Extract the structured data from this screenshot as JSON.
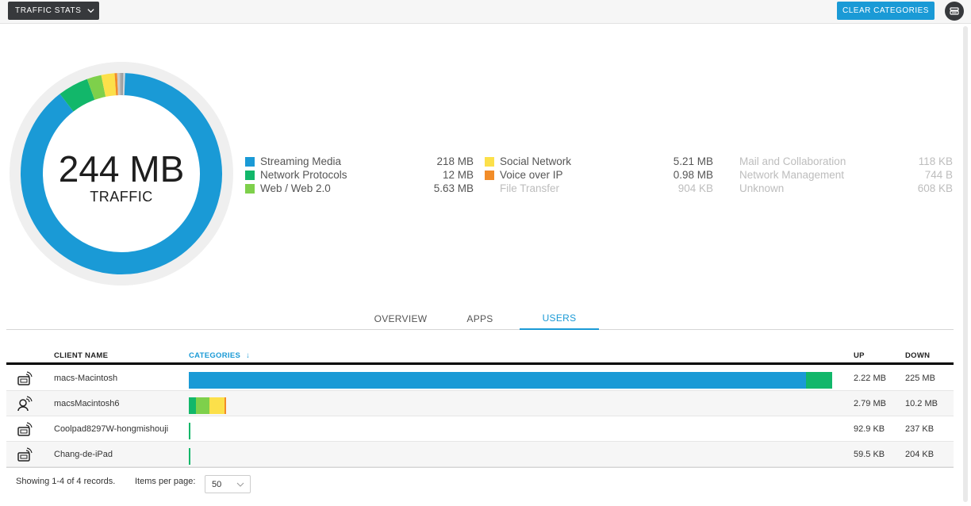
{
  "toolbar": {
    "view_label": "TRAFFIC STATS",
    "clear_label": "CLEAR CATEGORIES"
  },
  "summary": {
    "total": "244 MB",
    "label": "TRAFFIC"
  },
  "colors": {
    "streaming": "#1a9ad6",
    "network": "#12b76a",
    "web": "#7ed04b",
    "social": "#fce04a",
    "voip": "#f28c28",
    "track": "#efefef",
    "accent": "#1a9ad6"
  },
  "legend": [
    {
      "name": "Streaming Media",
      "value": "218 MB",
      "color": "#1a9ad6",
      "active": true
    },
    {
      "name": "Network Protocols",
      "value": "12 MB",
      "color": "#12b76a",
      "active": true
    },
    {
      "name": "Web / Web 2.0",
      "value": "5.63 MB",
      "color": "#7ed04b",
      "active": true
    },
    {
      "name": "Social Network",
      "value": "5.21 MB",
      "color": "#fce04a",
      "active": true
    },
    {
      "name": "Voice over IP",
      "value": "0.98 MB",
      "color": "#f28c28",
      "active": true
    },
    {
      "name": "File Transfer",
      "value": "904 KB",
      "color": "",
      "active": false
    },
    {
      "name": "Mail and Collaboration",
      "value": "118 KB",
      "color": "",
      "active": false
    },
    {
      "name": "Network Management",
      "value": "744 B",
      "color": "",
      "active": false
    },
    {
      "name": "Unknown",
      "value": "608 KB",
      "color": "",
      "active": false
    }
  ],
  "tabs": [
    {
      "label": "OVERVIEW",
      "active": false
    },
    {
      "label": "APPS",
      "active": false
    },
    {
      "label": "USERS",
      "active": true
    }
  ],
  "table": {
    "headers": {
      "client": "CLIENT NAME",
      "categories": "CATEGORIES",
      "sort_arrow": "↓",
      "up": "UP",
      "down": "DOWN"
    },
    "rows": [
      {
        "icon": "wireless-device-icon",
        "name": "macs-Macintosh",
        "up": "2.22 MB",
        "down": "225 MB",
        "segments": [
          {
            "color": "#1a9ad6",
            "fraction": 0.96
          },
          {
            "color": "#12b76a",
            "fraction": 0.04
          }
        ],
        "bar_fraction": 0.705
      },
      {
        "icon": "user-wifi-icon",
        "name": "macsMacintosh6",
        "up": "2.79 MB",
        "down": "10.2 MB",
        "segments": [
          {
            "color": "#12b76a",
            "fraction": 0.19
          },
          {
            "color": "#7ed04b",
            "fraction": 0.36
          },
          {
            "color": "#fce04a",
            "fraction": 0.41
          },
          {
            "color": "#f28c28",
            "fraction": 0.04
          }
        ],
        "bar_fraction": 0.041
      },
      {
        "icon": "wireless-device-icon",
        "name": "Coolpad8297W-hongmishouji",
        "up": "92.9 KB",
        "down": "237 KB",
        "segments": [
          {
            "color": "#12b76a",
            "fraction": 1.0
          }
        ],
        "bar_fraction": 0.0015
      },
      {
        "icon": "wireless-device-icon",
        "name": "Chang-de-iPad",
        "up": "59.5 KB",
        "down": "204 KB",
        "segments": [
          {
            "color": "#12b76a",
            "fraction": 1.0
          }
        ],
        "bar_fraction": 0.0015
      }
    ]
  },
  "footer": {
    "records": "Showing 1-4 of 4 records.",
    "per_page_label": "Items per page:",
    "per_page_value": "50"
  },
  "chart_data": {
    "type": "pie",
    "title": "",
    "categories": [
      "Streaming Media",
      "Network Protocols",
      "Web / Web 2.0",
      "Social Network",
      "Voice over IP",
      "File Transfer",
      "Mail and Collaboration",
      "Network Management",
      "Unknown"
    ],
    "values_mb": [
      218,
      12,
      5.63,
      5.21,
      0.98,
      0.904,
      0.118,
      0.000744,
      0.608
    ]
  }
}
